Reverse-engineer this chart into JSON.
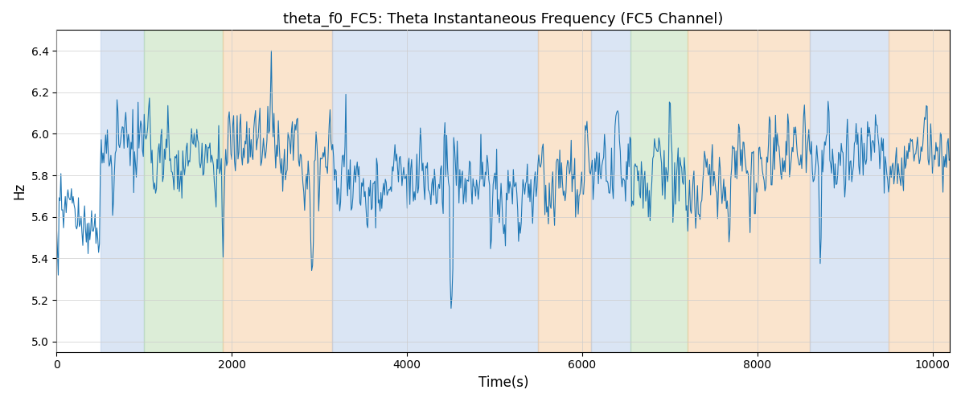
{
  "title": "theta_f0_FC5: Theta Instantaneous Frequency (FC5 Channel)",
  "xlabel": "Time(s)",
  "ylabel": "Hz",
  "xlim": [
    0,
    10200
  ],
  "ylim": [
    4.95,
    6.5
  ],
  "line_color": "#1f77b4",
  "line_width": 0.8,
  "background_regions": [
    {
      "xmin": 500,
      "xmax": 1000,
      "color": "#aec6e8",
      "alpha": 0.45
    },
    {
      "xmin": 1000,
      "xmax": 1900,
      "color": "#b2d8a8",
      "alpha": 0.45
    },
    {
      "xmin": 1900,
      "xmax": 3150,
      "color": "#f5c592",
      "alpha": 0.45
    },
    {
      "xmin": 3150,
      "xmax": 5500,
      "color": "#aec6e8",
      "alpha": 0.45
    },
    {
      "xmin": 5500,
      "xmax": 6100,
      "color": "#f5c592",
      "alpha": 0.45
    },
    {
      "xmin": 6100,
      "xmax": 6550,
      "color": "#aec6e8",
      "alpha": 0.45
    },
    {
      "xmin": 6550,
      "xmax": 7200,
      "color": "#b2d8a8",
      "alpha": 0.45
    },
    {
      "xmin": 7200,
      "xmax": 8600,
      "color": "#f5c592",
      "alpha": 0.45
    },
    {
      "xmin": 8600,
      "xmax": 9500,
      "color": "#aec6e8",
      "alpha": 0.45
    },
    {
      "xmin": 9500,
      "xmax": 10200,
      "color": "#f5c592",
      "alpha": 0.45
    }
  ],
  "n_points": 1020,
  "base_freq": 5.85,
  "noise_std": 0.09,
  "yticks": [
    5.0,
    5.2,
    5.4,
    5.6,
    5.8,
    6.0,
    6.2,
    6.4
  ],
  "xticks": [
    0,
    2000,
    4000,
    6000,
    8000,
    10000
  ],
  "figsize": [
    12,
    5
  ],
  "dpi": 100
}
